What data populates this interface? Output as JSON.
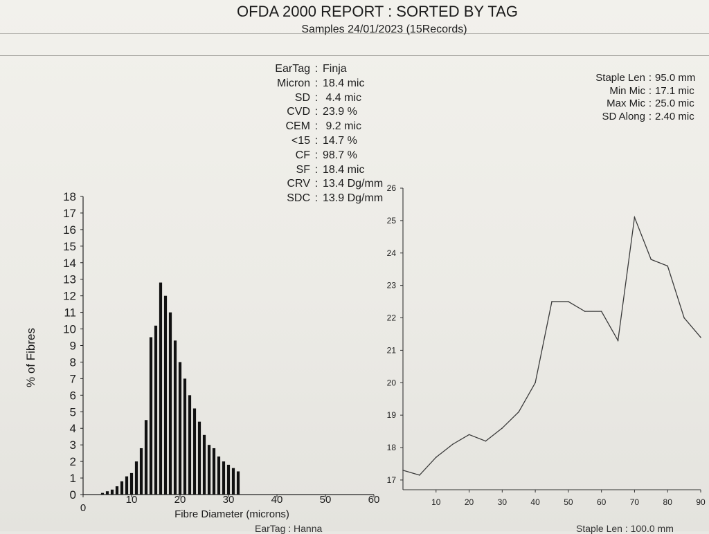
{
  "report": {
    "title": "OFDA 2000 REPORT : SORTED BY TAG",
    "subtitle": "Samples 24/01/2023 (15Records)"
  },
  "stats": [
    {
      "label": "EarTag",
      "value": "Finja"
    },
    {
      "label": "Micron",
      "value": "18.4 mic"
    },
    {
      "label": "SD",
      "value": " 4.4 mic"
    },
    {
      "label": "CVD",
      "value": "23.9 %"
    },
    {
      "label": "CEM",
      "value": " 9.2 mic"
    },
    {
      "label": "<15",
      "value": "14.7 %"
    },
    {
      "label": "CF",
      "value": "98.7 %"
    },
    {
      "label": "SF",
      "value": "18.4 mic"
    },
    {
      "label": "CRV",
      "value": "13.4 Dg/mm"
    },
    {
      "label": "SDC",
      "value": "13.9 Dg/mm"
    }
  ],
  "right_stats": [
    {
      "label": "Staple Len",
      "value": "95.0 mm"
    },
    {
      "label": "Min Mic",
      "value": "17.1 mic"
    },
    {
      "label": "Max Mic",
      "value": "25.0 mic"
    },
    {
      "label": "SD Along",
      "value": "2.40 mic"
    }
  ],
  "footer": {
    "left_text": "EarTag : Hanna",
    "right_text": "Staple Len : 100.0 mm"
  },
  "chart_data": [
    {
      "type": "bar",
      "xlabel": "Fibre Diameter (microns)",
      "ylabel": "% of Fibres",
      "xlim": [
        0,
        60
      ],
      "ylim": [
        0,
        18
      ],
      "xticks": [
        0,
        10,
        20,
        30,
        40,
        50,
        60
      ],
      "yticks": [
        0,
        1,
        2,
        3,
        4,
        5,
        6,
        7,
        8,
        9,
        10,
        11,
        12,
        13,
        14,
        15,
        16,
        17,
        18
      ],
      "x": [
        4,
        5,
        6,
        7,
        8,
        9,
        10,
        11,
        12,
        13,
        14,
        15,
        16,
        17,
        18,
        19,
        20,
        21,
        22,
        23,
        24,
        25,
        26,
        27,
        28,
        29,
        30,
        31,
        32
      ],
      "values": [
        0.1,
        0.2,
        0.3,
        0.5,
        0.8,
        1.1,
        1.3,
        2.0,
        2.8,
        4.5,
        9.5,
        10.2,
        12.8,
        12.0,
        11.0,
        9.3,
        8.0,
        7.0,
        6.0,
        5.2,
        4.4,
        3.6,
        3.0,
        2.8,
        2.3,
        2.0,
        1.8,
        1.6,
        1.4
      ]
    },
    {
      "type": "line",
      "xlabel": "",
      "ylabel": "",
      "xlim": [
        0,
        90
      ],
      "ylim": [
        17,
        26
      ],
      "xticks": [
        10,
        20,
        30,
        40,
        50,
        60,
        70,
        80,
        90
      ],
      "yticks": [
        17,
        18,
        19,
        20,
        21,
        22,
        23,
        24,
        25,
        26
      ],
      "x": [
        0,
        5,
        10,
        15,
        20,
        25,
        30,
        35,
        40,
        45,
        50,
        55,
        60,
        65,
        70,
        75,
        80,
        85,
        90
      ],
      "values": [
        17.3,
        17.15,
        17.7,
        18.1,
        18.4,
        18.2,
        18.6,
        19.1,
        20.0,
        22.5,
        22.5,
        22.2,
        22.2,
        21.3,
        25.1,
        23.8,
        23.6,
        22.0,
        21.4
      ]
    }
  ]
}
